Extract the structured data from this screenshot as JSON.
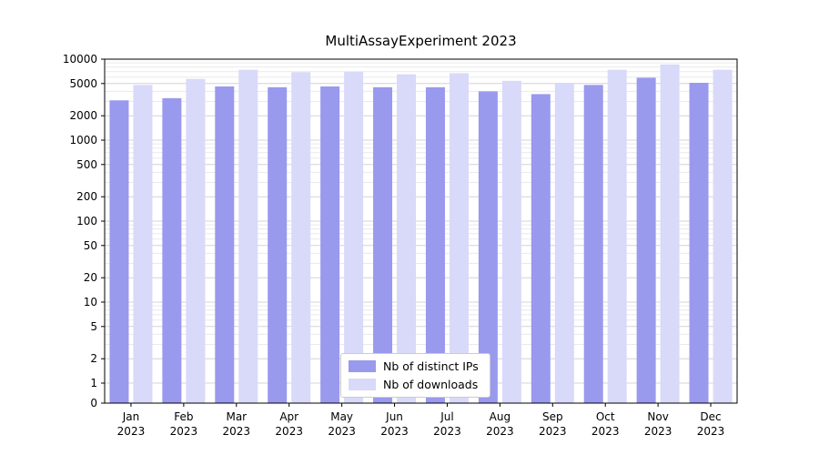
{
  "title": "MultiAssayExperiment 2023",
  "chart_data": {
    "type": "bar",
    "title": "MultiAssayExperiment 2023",
    "categories": [
      "Jan",
      "Feb",
      "Mar",
      "Apr",
      "May",
      "Jun",
      "Jul",
      "Aug",
      "Sep",
      "Oct",
      "Nov",
      "Dec"
    ],
    "year_label": "2023",
    "series": [
      {
        "name": "Nb of distinct IPs",
        "color": "#9999ee",
        "values": [
          3100,
          3300,
          4600,
          4500,
          4600,
          4500,
          4500,
          4000,
          3700,
          4800,
          5900,
          5100
        ]
      },
      {
        "name": "Nb of downloads",
        "color": "#d9d9f9",
        "values": [
          4800,
          5700,
          7400,
          6900,
          7000,
          6500,
          6700,
          5400,
          5100,
          7400,
          8600,
          7400
        ]
      }
    ],
    "yscale": "log",
    "yticks": [
      0,
      1,
      2,
      5,
      10,
      20,
      50,
      100,
      200,
      500,
      1000,
      2000,
      5000,
      10000
    ],
    "ylim": [
      0,
      10000
    ],
    "grid": true,
    "legend_position": "bottom-center",
    "colors": {
      "major_grid": "#d4d4d4",
      "minor_grid": "#eaeaea",
      "axis": "#000000",
      "tick_label": "#000000"
    }
  }
}
